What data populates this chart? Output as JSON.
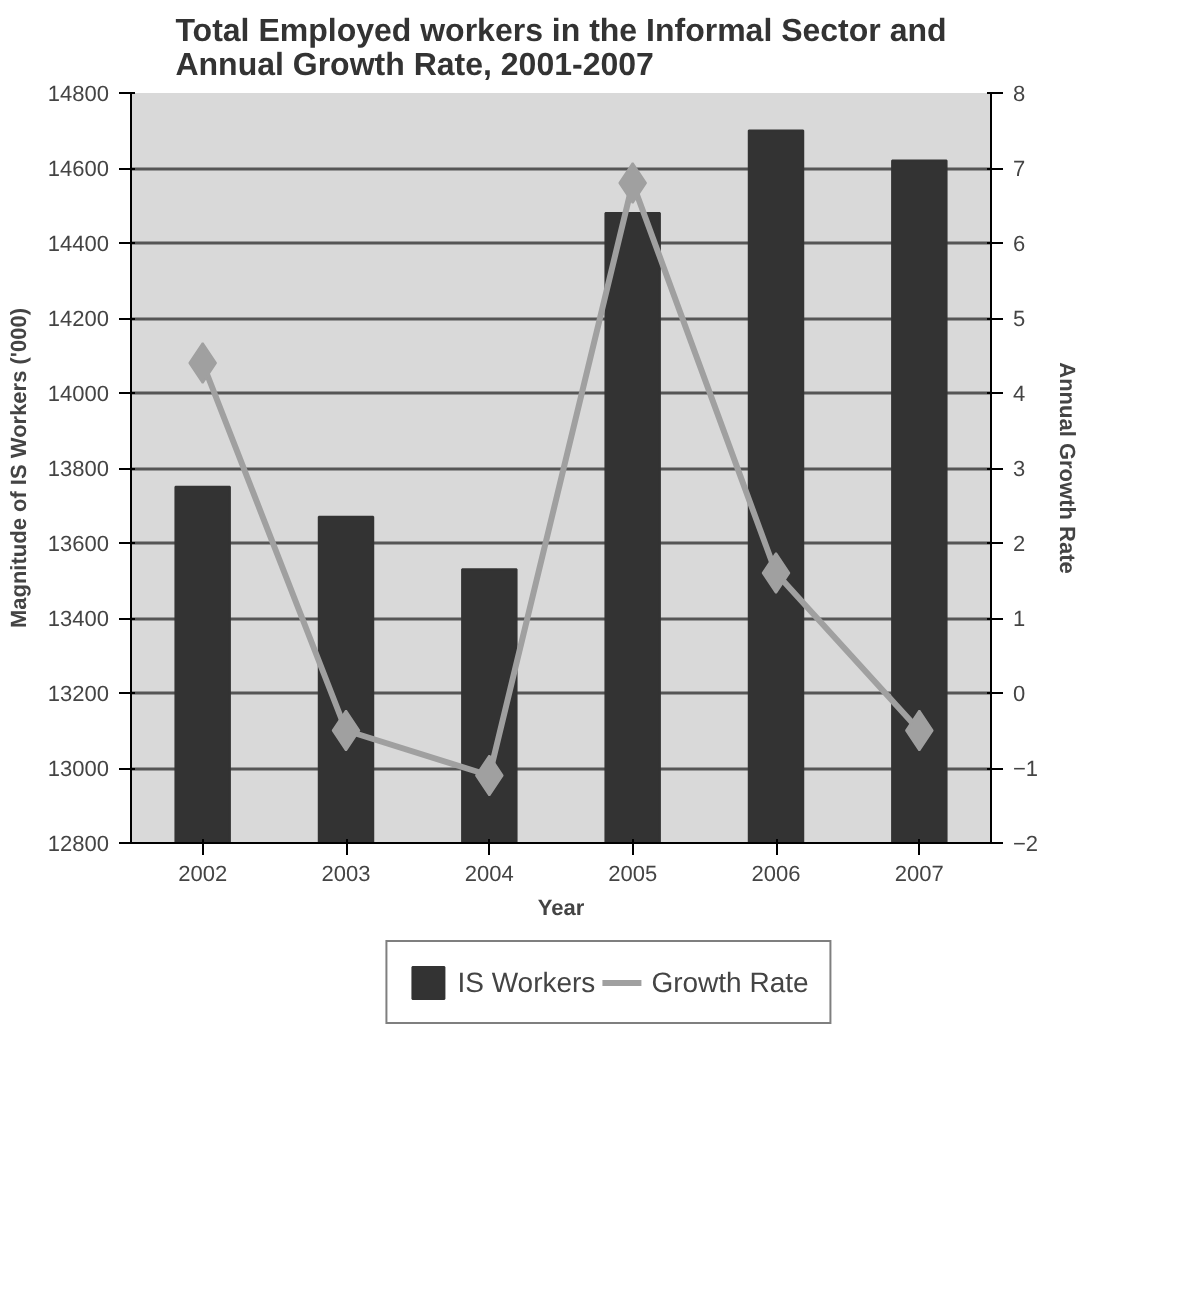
{
  "chart_data": {
    "type": "bar",
    "title": "Total Employed workers in the Informal Sector and Annual Growth Rate, 2001-2007",
    "xlabel": "Year",
    "ylabel": "Magnitude of IS Workers ('000)",
    "y2label": "Annual Growth Rate",
    "categories": [
      "2002",
      "2003",
      "2004",
      "2005",
      "2006",
      "2007"
    ],
    "series": [
      {
        "name": "IS Workers",
        "color": "#333333",
        "values": [
          13750,
          13670,
          13530,
          14480,
          14700,
          14620
        ]
      },
      {
        "name": "Growth Rate",
        "type": "line",
        "axis": "y2",
        "color": "#a0a0a0",
        "marker": "diamond",
        "values": [
          4.4,
          -0.5,
          -1.1,
          6.8,
          1.6,
          -0.5
        ]
      }
    ],
    "ylim": [
      12800,
      14800
    ],
    "yticks": [
      12800,
      13000,
      13200,
      13400,
      13600,
      13800,
      14000,
      14200,
      14400,
      14600,
      14800
    ],
    "y2lim": [
      -2,
      8
    ],
    "y2ticks": [
      -2,
      -1,
      0,
      1,
      2,
      3,
      4,
      5,
      6,
      7,
      8
    ],
    "grid": "y",
    "legend": "bottom"
  }
}
